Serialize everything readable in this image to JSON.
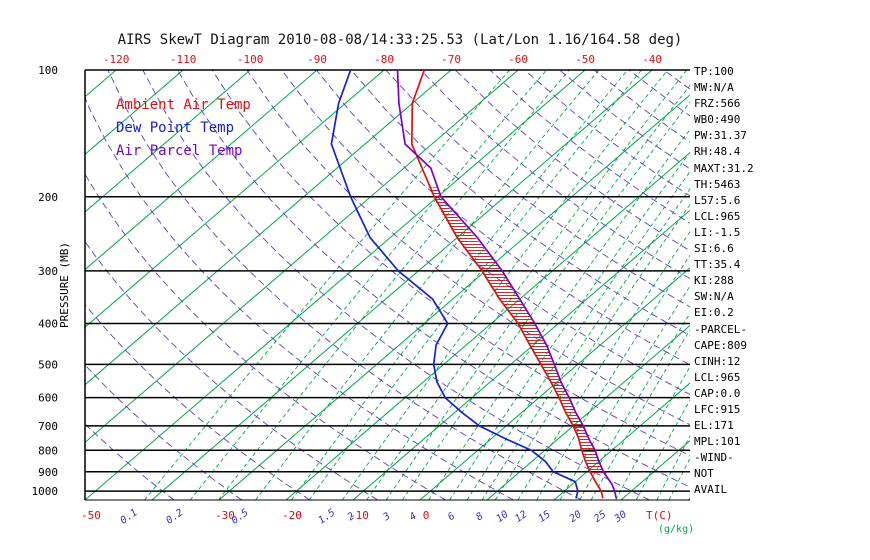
{
  "title": "AIRS SkewT Diagram 2010-08-08/14:33:25.53 (Lat/Lon 1.16/164.58 deg)",
  "legend": {
    "items": [
      {
        "label": "Ambient Air Temp",
        "color": "#dd1111"
      },
      {
        "label": "Dew Point Temp",
        "color": "#1822cc"
      },
      {
        "label": "Air Parcel Temp",
        "color": "#7a00c8"
      }
    ]
  },
  "left_axis": {
    "label": "PRESSURE (MB)",
    "ticks": [
      100,
      200,
      300,
      400,
      500,
      600,
      700,
      800,
      900,
      1000
    ]
  },
  "top_axis": {
    "color": "#dd1111",
    "labels": [
      -120,
      -110,
      -100,
      -90,
      -80,
      -70,
      -60,
      -50,
      -40
    ]
  },
  "bottom_axis": {
    "temp_labels": [
      -50,
      -30,
      -20,
      -10,
      0
    ],
    "temp_unit": "T(C)",
    "temp_color": "#dd1111",
    "mixratio_labels": [
      0.1,
      0.2,
      0.5,
      1.5,
      2,
      3,
      4,
      6,
      8,
      10,
      12,
      15,
      20,
      25,
      30
    ],
    "mixratio_unit": "(g/kg)",
    "mixratio_label_color": "#3b2fbf",
    "mixratio_unit_color": "#00a848"
  },
  "stats": {
    "lines": [
      "TP:100",
      "MW:N/A",
      "FRZ:566",
      "WB0:490",
      "PW:31.37",
      "RH:48.4",
      "MAXT:31.2",
      "TH:5463",
      "L57:5.6",
      "LCL:965",
      "LI:-1.5",
      "SI:6.6",
      "TT:35.4",
      "KI:288",
      "SW:N/A",
      "EI:0.2",
      "-PARCEL-",
      "CAPE:809",
      "CINH:12",
      "LCL:965",
      "CAP:0.0",
      "LFC:915",
      "EL:171",
      "MPL:101",
      "-WIND-",
      "NOT",
      "AVAIL"
    ]
  },
  "chart_data": {
    "type": "line",
    "subtype": "skew-t-log-p",
    "title": "AIRS SkewT Diagram 2010-08-08/14:33:25.53 (Lat/Lon 1.16/164.58 deg)",
    "x_axis": {
      "label": "T(C)",
      "surface_range": [
        -50,
        40
      ],
      "top_range": [
        -120,
        -40
      ],
      "skewed": true
    },
    "y_axis": {
      "label": "PRESSURE (MB)",
      "scale": "log",
      "top": 100,
      "bottom": 1050
    },
    "grid": {
      "isotherms_c": {
        "min": -120,
        "max": 40,
        "step": 10
      },
      "dry_adiabats_c": {
        "min": -40,
        "max": 190,
        "step": 10
      },
      "mixing_ratio_gkg": [
        0.1,
        0.2,
        0.3,
        0.5,
        0.8,
        1,
        1.5,
        2,
        2.5,
        3,
        4,
        5,
        6,
        7,
        8,
        10,
        12,
        15,
        18,
        20,
        25,
        30,
        36,
        40
      ],
      "isotherm_color": "#00a848",
      "mixratio_color": "#00a848",
      "adiabat_color": "#5b3fc4",
      "pressure_line_color": "#000000"
    },
    "series": [
      {
        "name": "Ambient Air Temp",
        "color": "#dd1111",
        "points_p_t": [
          [
            1040,
            27
          ],
          [
            1000,
            25.5
          ],
          [
            950,
            23
          ],
          [
            900,
            20.5
          ],
          [
            850,
            18
          ],
          [
            800,
            15.5
          ],
          [
            750,
            13
          ],
          [
            700,
            10
          ],
          [
            650,
            6.5
          ],
          [
            600,
            3
          ],
          [
            550,
            -1
          ],
          [
            500,
            -5.5
          ],
          [
            450,
            -10.5
          ],
          [
            400,
            -16
          ],
          [
            350,
            -23
          ],
          [
            300,
            -30.5
          ],
          [
            250,
            -40
          ],
          [
            200,
            -50.5
          ],
          [
            150,
            -63
          ],
          [
            120,
            -70
          ],
          [
            100,
            -74
          ]
        ]
      },
      {
        "name": "Dew Point Temp",
        "color": "#1822cc",
        "points_p_t": [
          [
            1040,
            23
          ],
          [
            1000,
            22
          ],
          [
            950,
            20
          ],
          [
            900,
            15
          ],
          [
            850,
            12
          ],
          [
            800,
            8
          ],
          [
            750,
            2
          ],
          [
            700,
            -4
          ],
          [
            650,
            -9
          ],
          [
            600,
            -14
          ],
          [
            550,
            -18
          ],
          [
            500,
            -21.5
          ],
          [
            450,
            -24.5
          ],
          [
            400,
            -26.5
          ],
          [
            350,
            -33
          ],
          [
            300,
            -43
          ],
          [
            250,
            -53
          ],
          [
            200,
            -63
          ],
          [
            150,
            -75
          ],
          [
            120,
            -81
          ],
          [
            100,
            -85
          ]
        ]
      },
      {
        "name": "Air Parcel Temp",
        "color": "#7a00c8",
        "points_p_t": [
          [
            1040,
            29
          ],
          [
            1000,
            27.5
          ],
          [
            965,
            26
          ],
          [
            900,
            22.5
          ],
          [
            850,
            20
          ],
          [
            800,
            17.5
          ],
          [
            750,
            14.5
          ],
          [
            700,
            11.5
          ],
          [
            650,
            8
          ],
          [
            600,
            4.5
          ],
          [
            550,
            0.5
          ],
          [
            500,
            -3.5
          ],
          [
            450,
            -8
          ],
          [
            400,
            -13.5
          ],
          [
            350,
            -20
          ],
          [
            300,
            -27.5
          ],
          [
            250,
            -37
          ],
          [
            200,
            -49.5
          ],
          [
            171,
            -56
          ],
          [
            150,
            -64
          ],
          [
            120,
            -72
          ],
          [
            100,
            -78
          ]
        ]
      }
    ],
    "cape_area": {
      "between": [
        "Air Parcel Temp",
        "Ambient Air Temp"
      ],
      "pressure_range": [
        915,
        190
      ],
      "hatch_color": "#d01010"
    }
  }
}
